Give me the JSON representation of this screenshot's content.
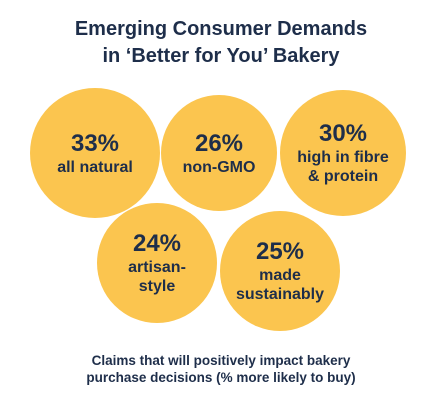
{
  "title_line1": "Emerging Consumer Demands",
  "title_line2": "in ‘Better for You’ Bakery",
  "caption_line1": "Claims that will positively impact bakery",
  "caption_line2": "purchase decisions (% more likely to buy)",
  "colors": {
    "bubble": "#fbc54f",
    "text": "#1e2e4a"
  },
  "chart_data": {
    "type": "bubble",
    "title": "Emerging Consumer Demands in ‘Better for You’ Bakery",
    "caption": "Claims that will positively impact bakery purchase decisions (% more likely to buy)",
    "unit": "%",
    "items": [
      {
        "value": "33%",
        "label": "all natural",
        "pct": 33
      },
      {
        "value": "26%",
        "label": "non-GMO",
        "pct": 26
      },
      {
        "value": "30%",
        "label": "high in fibre\n& protein",
        "pct": 30
      },
      {
        "value": "24%",
        "label": "artisan-\nstyle",
        "pct": 24
      },
      {
        "value": "25%",
        "label": "made\nsustainably",
        "pct": 25
      }
    ]
  }
}
